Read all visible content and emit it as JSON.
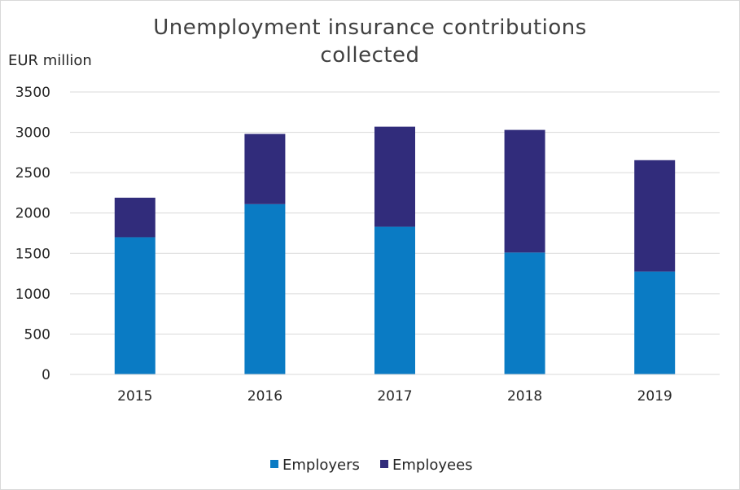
{
  "chart_data": {
    "type": "bar",
    "stacked": true,
    "title_lines": [
      "Unemployment insurance contributions",
      "collected"
    ],
    "ylabel": "EUR million",
    "xlabel": "",
    "categories": [
      "2015",
      "2016",
      "2017",
      "2018",
      "2019"
    ],
    "series": [
      {
        "name": "Employers",
        "color": "#0A7BC4",
        "values": [
          1700,
          2110,
          1830,
          1510,
          1275
        ]
      },
      {
        "name": "Employees",
        "color": "#312C7B",
        "values": [
          490,
          870,
          1240,
          1520,
          1380
        ]
      }
    ],
    "ylim": [
      0,
      3500
    ],
    "yticks": [
      0,
      500,
      1000,
      1500,
      2000,
      2500,
      3000,
      3500
    ],
    "grid": true,
    "legend_position": "bottom"
  }
}
